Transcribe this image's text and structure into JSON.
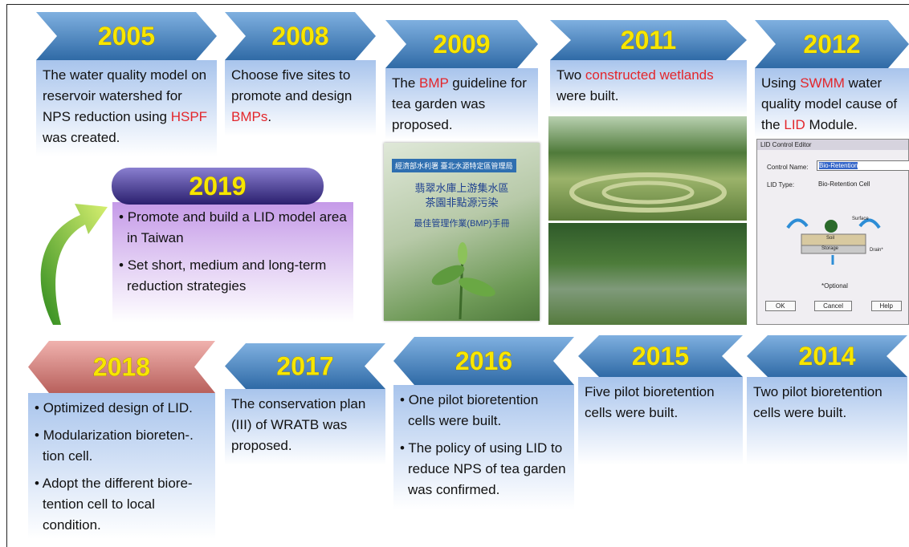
{
  "timeline": {
    "highlight_color": "#e3262b",
    "top": [
      {
        "year": "2005",
        "paragraphs": [
          [
            {
              "text": "The water quality model on reservoir watershed for NPS reduction using "
            },
            {
              "text": "HSPF",
              "highlight": true
            },
            {
              "text": " was created."
            }
          ]
        ]
      },
      {
        "year": "2008",
        "paragraphs": [
          [
            {
              "text": "Choose five sites to promote and design "
            },
            {
              "text": "BMPs",
              "highlight": true
            },
            {
              "text": "."
            }
          ]
        ]
      },
      {
        "year": "2009",
        "paragraphs": [
          [
            {
              "text": "The "
            },
            {
              "text": "BMP",
              "highlight": true
            },
            {
              "text": " guideline for tea garden was proposed."
            }
          ]
        ]
      },
      {
        "year": "2011",
        "paragraphs": [
          [
            {
              "text": "Two "
            },
            {
              "text": "constructed wetlands",
              "highlight": true
            },
            {
              "text": " were built."
            }
          ]
        ]
      },
      {
        "year": "2012",
        "paragraphs": [
          [
            {
              "text": "Using "
            },
            {
              "text": "SWMM",
              "highlight": true
            },
            {
              "text": " water quality model cause of the "
            },
            {
              "text": "LID",
              "highlight": true
            },
            {
              "text": " Module."
            }
          ]
        ]
      }
    ],
    "feature": {
      "year": "2019",
      "bulleted": true,
      "paragraphs": [
        [
          {
            "text": "Promote and build a LID model area in Taiwan"
          }
        ],
        [
          {
            "text": "Set short, medium and long-term reduction strategies"
          }
        ]
      ]
    },
    "bottom": [
      {
        "year": "2018",
        "bulleted": true,
        "paragraphs": [
          [
            {
              "text": "Optimized design of LID."
            }
          ],
          [
            {
              "text": "Modularization bioreten-. tion cell."
            }
          ],
          [
            {
              "text": "Adopt the different biore-tention cell to local condition."
            }
          ]
        ]
      },
      {
        "year": "2017",
        "paragraphs": [
          [
            {
              "text": "The conservation plan (III) of WRATB was proposed."
            }
          ]
        ]
      },
      {
        "year": "2016",
        "bulleted": true,
        "paragraphs": [
          [
            {
              "text": "One pilot bioretention cells were built."
            }
          ],
          [
            {
              "text": "The policy of using LID to reduce NPS of tea garden was confirmed."
            }
          ]
        ]
      },
      {
        "year": "2015",
        "paragraphs": [
          [
            {
              "text": "Five pilot bioretention cells were built."
            }
          ]
        ]
      },
      {
        "year": "2014",
        "paragraphs": [
          [
            {
              "text": "Two pilot bioretention cells were built."
            }
          ]
        ]
      }
    ],
    "book_cover": {
      "agency": "經濟部水利署 臺北水源特定區管理局",
      "title": [
        "翡翠水庫上游集水區",
        "茶園非點源污染"
      ],
      "subtitle": "最佳管理作業(BMP)手冊"
    },
    "lid_dialog": {
      "title": "LID Control Editor",
      "name_label": "Control Name:",
      "name_value": "Bio-Retention",
      "type_label": "LID Type:",
      "type_value": "Bio-Retention Cell",
      "layers": [
        "Surface",
        "Soil",
        "Storage",
        "Drain*"
      ],
      "note": "*Optional",
      "buttons": [
        "OK",
        "Cancel",
        "Help"
      ]
    }
  }
}
